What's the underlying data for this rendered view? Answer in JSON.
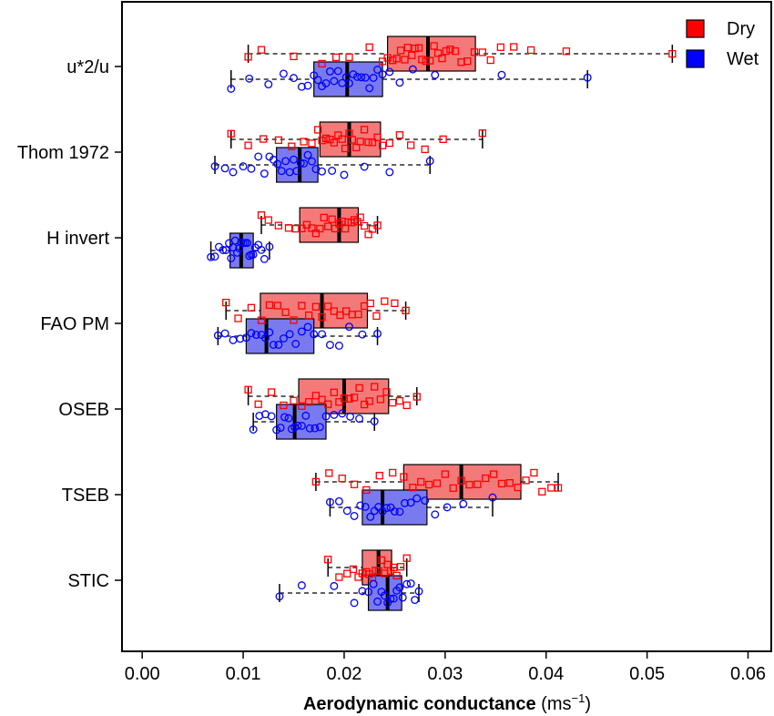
{
  "chart_data": {
    "type": "box",
    "orientation": "horizontal",
    "title": "",
    "xlabel_bold": "Aerodynamic conductance",
    "xlabel_unit": "(ms",
    "xlabel_unit_sup": "−1",
    "xlabel_unit_close": ")",
    "xlim": [
      -0.002,
      0.0623
    ],
    "xticks": [
      0.0,
      0.01,
      0.02,
      0.03,
      0.04,
      0.05,
      0.06
    ],
    "xtick_labels": [
      "0.00",
      "0.01",
      "0.02",
      "0.03",
      "0.04",
      "0.05",
      "0.06"
    ],
    "grid": false,
    "legend_position": "top-right",
    "series": [
      {
        "name": "Dry",
        "color": "#ff0000",
        "fill": "#f47a7a",
        "marker": "square"
      },
      {
        "name": "Wet",
        "color": "#0000ff",
        "fill": "#7a7af0",
        "marker": "circle"
      }
    ],
    "categories": [
      "u*2/u",
      "Thom 1972",
      "H invert",
      "FAO PM",
      "OSEB",
      "TSEB",
      "STIC"
    ],
    "boxes": [
      {
        "category": "u*2/u",
        "series": "Dry",
        "whisker_low": 0.0105,
        "q1": 0.0243,
        "median": 0.0283,
        "q3": 0.033,
        "whisker_high": 0.0525
      },
      {
        "category": "u*2/u",
        "series": "Wet",
        "whisker_low": 0.0088,
        "q1": 0.017,
        "median": 0.0203,
        "q3": 0.0238,
        "whisker_high": 0.0441
      },
      {
        "category": "Thom 1972",
        "series": "Dry",
        "whisker_low": 0.0088,
        "q1": 0.0176,
        "median": 0.0205,
        "q3": 0.0236,
        "whisker_high": 0.0337
      },
      {
        "category": "Thom 1972",
        "series": "Wet",
        "whisker_low": 0.0072,
        "q1": 0.0133,
        "median": 0.0156,
        "q3": 0.0174,
        "whisker_high": 0.0285
      },
      {
        "category": "H invert",
        "series": "Dry",
        "whisker_low": 0.0118,
        "q1": 0.0156,
        "median": 0.0195,
        "q3": 0.0214,
        "whisker_high": 0.0233
      },
      {
        "category": "H invert",
        "series": "Wet",
        "whisker_low": 0.0068,
        "q1": 0.0087,
        "median": 0.0098,
        "q3": 0.011,
        "whisker_high": 0.0126
      },
      {
        "category": "FAO PM",
        "series": "Dry",
        "whisker_low": 0.0083,
        "q1": 0.0117,
        "median": 0.0178,
        "q3": 0.0223,
        "whisker_high": 0.0261
      },
      {
        "category": "FAO PM",
        "series": "Wet",
        "whisker_low": 0.0075,
        "q1": 0.0103,
        "median": 0.0123,
        "q3": 0.017,
        "whisker_high": 0.0233
      },
      {
        "category": "OSEB",
        "series": "Dry",
        "whisker_low": 0.0105,
        "q1": 0.0155,
        "median": 0.02,
        "q3": 0.0244,
        "whisker_high": 0.0272
      },
      {
        "category": "OSEB",
        "series": "Wet",
        "whisker_low": 0.011,
        "q1": 0.0133,
        "median": 0.0151,
        "q3": 0.0182,
        "whisker_high": 0.023
      },
      {
        "category": "TSEB",
        "series": "Dry",
        "whisker_low": 0.0172,
        "q1": 0.0259,
        "median": 0.0316,
        "q3": 0.0375,
        "whisker_high": 0.0412
      },
      {
        "category": "TSEB",
        "series": "Wet",
        "whisker_low": 0.0186,
        "q1": 0.0218,
        "median": 0.0238,
        "q3": 0.0282,
        "whisker_high": 0.0347
      },
      {
        "category": "STIC",
        "series": "Dry",
        "whisker_low": 0.0184,
        "q1": 0.0218,
        "median": 0.0234,
        "q3": 0.0247,
        "whisker_high": 0.0262
      },
      {
        "category": "STIC",
        "series": "Wet",
        "whisker_low": 0.0136,
        "q1": 0.0224,
        "median": 0.0243,
        "q3": 0.0257,
        "whisker_high": 0.0274
      }
    ],
    "points": {
      "u*2/u|Dry": [
        0.0105,
        0.0118,
        0.015,
        0.0178,
        0.0192,
        0.0205,
        0.0225,
        0.0238,
        0.0243,
        0.0248,
        0.0252,
        0.0256,
        0.026,
        0.0263,
        0.0267,
        0.027,
        0.0274,
        0.0277,
        0.0281,
        0.0285,
        0.0289,
        0.0293,
        0.0297,
        0.0301,
        0.0305,
        0.031,
        0.0316,
        0.0322,
        0.0329,
        0.0337,
        0.0345,
        0.0355,
        0.0368,
        0.0385,
        0.042,
        0.0525
      ],
      "u*2/u|Wet": [
        0.0088,
        0.0106,
        0.0125,
        0.014,
        0.015,
        0.0158,
        0.0164,
        0.017,
        0.0174,
        0.0178,
        0.0182,
        0.0186,
        0.019,
        0.0194,
        0.0198,
        0.0202,
        0.0205,
        0.0209,
        0.0213,
        0.0217,
        0.0221,
        0.0225,
        0.0229,
        0.0233,
        0.0238,
        0.0245,
        0.0255,
        0.0268,
        0.029,
        0.0356,
        0.0441
      ],
      "Thom 1972|Dry": [
        0.0088,
        0.0105,
        0.012,
        0.0135,
        0.0148,
        0.016,
        0.0168,
        0.0174,
        0.0178,
        0.0182,
        0.0186,
        0.019,
        0.0194,
        0.0198,
        0.0201,
        0.0205,
        0.0208,
        0.0212,
        0.0216,
        0.022,
        0.0224,
        0.0228,
        0.0233,
        0.0238,
        0.0245,
        0.0255,
        0.0266,
        0.028,
        0.0298,
        0.0337
      ],
      "Thom 1972|Wet": [
        0.0072,
        0.0082,
        0.009,
        0.01,
        0.0108,
        0.0115,
        0.0121,
        0.0126,
        0.013,
        0.0134,
        0.0138,
        0.0142,
        0.0146,
        0.015,
        0.0153,
        0.0157,
        0.016,
        0.0164,
        0.0168,
        0.0172,
        0.0178,
        0.0188,
        0.02,
        0.022,
        0.0245,
        0.0285
      ],
      "H invert|Dry": [
        0.0118,
        0.0125,
        0.0135,
        0.0145,
        0.0152,
        0.0158,
        0.0163,
        0.0168,
        0.0172,
        0.0176,
        0.018,
        0.0184,
        0.0188,
        0.0191,
        0.0195,
        0.0198,
        0.0201,
        0.0204,
        0.0207,
        0.021,
        0.0213,
        0.0216,
        0.022,
        0.0224,
        0.0228,
        0.0233
      ],
      "H invert|Wet": [
        0.0068,
        0.0072,
        0.0076,
        0.008,
        0.0083,
        0.0086,
        0.0088,
        0.009,
        0.0092,
        0.0094,
        0.0096,
        0.0098,
        0.01,
        0.0102,
        0.0104,
        0.0106,
        0.0108,
        0.011,
        0.0112,
        0.0115,
        0.0118,
        0.0121,
        0.0126
      ],
      "FAO PM|Dry": [
        0.0083,
        0.0095,
        0.0108,
        0.0118,
        0.0126,
        0.0134,
        0.0142,
        0.015,
        0.0158,
        0.0165,
        0.0172,
        0.0178,
        0.0184,
        0.019,
        0.0196,
        0.0202,
        0.0208,
        0.0214,
        0.022,
        0.0226,
        0.0232,
        0.024,
        0.025,
        0.0261
      ],
      "FAO PM|Wet": [
        0.0075,
        0.0082,
        0.009,
        0.0097,
        0.0103,
        0.0108,
        0.0113,
        0.0118,
        0.0122,
        0.0126,
        0.013,
        0.0135,
        0.014,
        0.0146,
        0.0152,
        0.0158,
        0.0164,
        0.017,
        0.0178,
        0.0186,
        0.0195,
        0.0205,
        0.0218,
        0.0233
      ],
      "OSEB|Dry": [
        0.0105,
        0.0115,
        0.0128,
        0.014,
        0.015,
        0.0158,
        0.0165,
        0.0172,
        0.0178,
        0.0184,
        0.019,
        0.0195,
        0.02,
        0.0205,
        0.021,
        0.0215,
        0.022,
        0.0225,
        0.023,
        0.0236,
        0.0242,
        0.0248,
        0.0255,
        0.0262,
        0.0272
      ],
      "OSEB|Wet": [
        0.011,
        0.0116,
        0.0122,
        0.0128,
        0.0133,
        0.0137,
        0.0141,
        0.0145,
        0.0148,
        0.0151,
        0.0154,
        0.0158,
        0.0162,
        0.0166,
        0.0171,
        0.0176,
        0.0182,
        0.019,
        0.0198,
        0.0206,
        0.0215,
        0.023
      ],
      "TSEB|Dry": [
        0.0172,
        0.0185,
        0.0198,
        0.021,
        0.0222,
        0.0235,
        0.0248,
        0.0259,
        0.0268,
        0.0276,
        0.0284,
        0.0292,
        0.03,
        0.0308,
        0.0316,
        0.0324,
        0.0332,
        0.034,
        0.0348,
        0.0356,
        0.0364,
        0.0372,
        0.038,
        0.0388,
        0.0396,
        0.0405,
        0.0412
      ],
      "TSEB|Wet": [
        0.0186,
        0.0195,
        0.0203,
        0.021,
        0.0216,
        0.0221,
        0.0226,
        0.023,
        0.0234,
        0.0238,
        0.0242,
        0.0246,
        0.025,
        0.0255,
        0.026,
        0.0266,
        0.0272,
        0.028,
        0.029,
        0.0302,
        0.0318,
        0.0347
      ],
      "STIC|Dry": [
        0.0184,
        0.0195,
        0.0203,
        0.0209,
        0.0214,
        0.0218,
        0.0222,
        0.0225,
        0.0228,
        0.0231,
        0.0234,
        0.0237,
        0.024,
        0.0243,
        0.0246,
        0.0249,
        0.0252,
        0.0256,
        0.0262
      ],
      "STIC|Wet": [
        0.0136,
        0.0158,
        0.019,
        0.021,
        0.0218,
        0.0224,
        0.0229,
        0.0233,
        0.0237,
        0.024,
        0.0243,
        0.0246,
        0.0249,
        0.0252,
        0.0255,
        0.0258,
        0.0262,
        0.0266,
        0.027,
        0.0274
      ]
    }
  }
}
